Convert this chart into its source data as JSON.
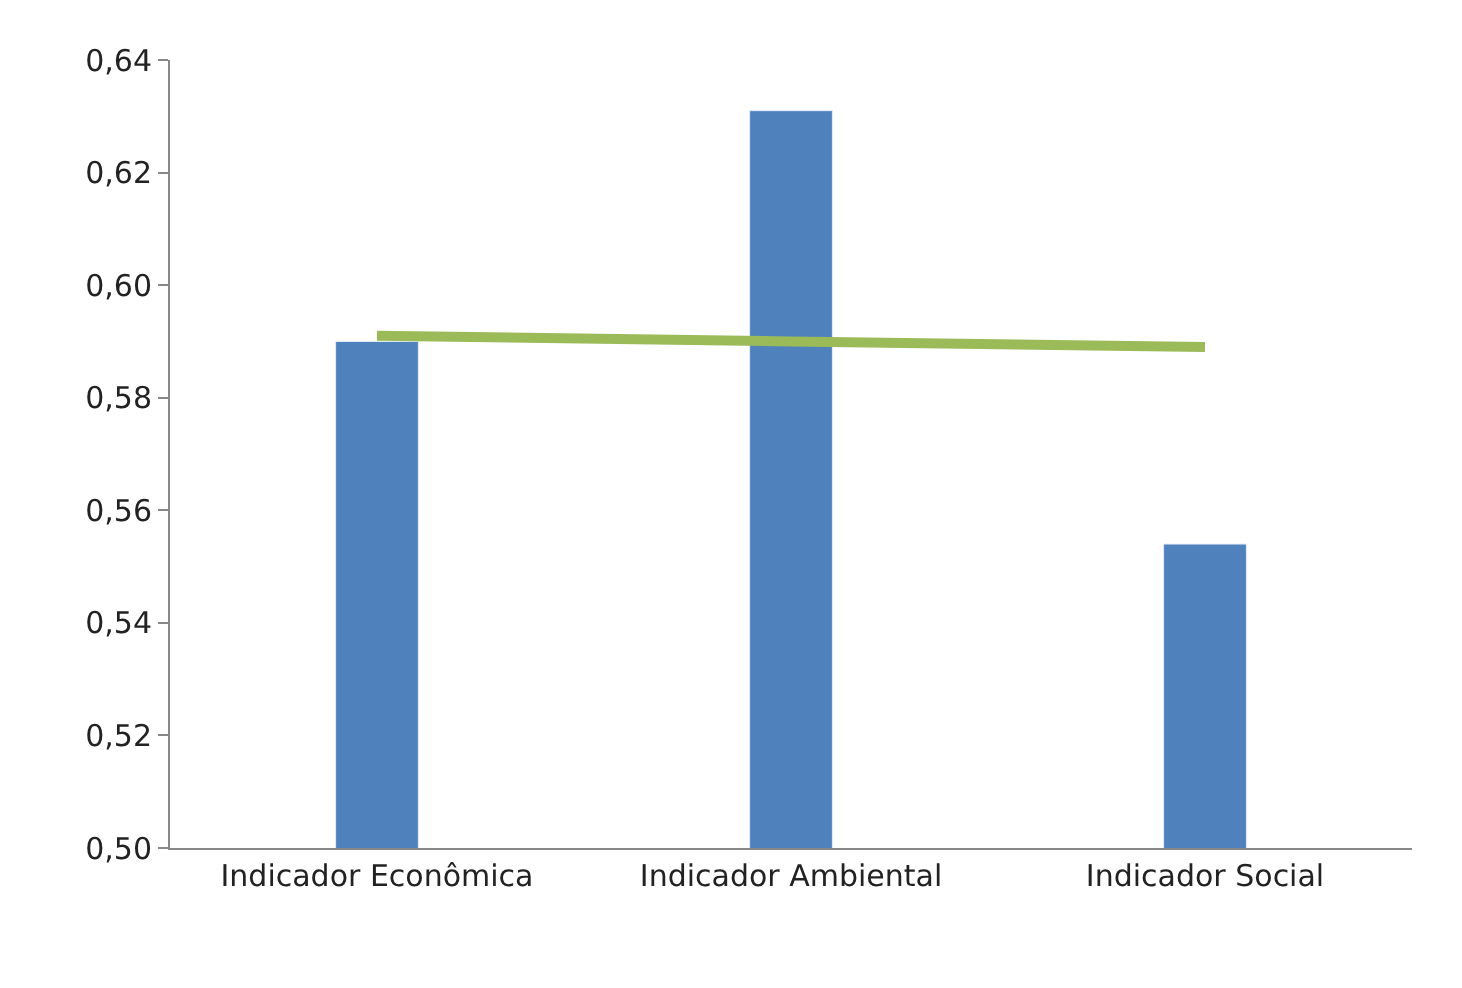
{
  "chart_data": {
    "type": "bar",
    "categories": [
      "Indicador Econômica",
      "Indicador Ambiental",
      "Indicador Social"
    ],
    "series": [
      {
        "color": "#4f81bd",
        "values": [
          0.59,
          0.631,
          0.554
        ]
      },
      {
        "type": "line",
        "color": "#9bbb59",
        "values": [
          0.591,
          0.59,
          0.589
        ]
      }
    ],
    "ylim": [
      0.5,
      0.64
    ],
    "yticks": [
      {
        "value": 0.5,
        "label": "0,50"
      },
      {
        "value": 0.52,
        "label": "0,52"
      },
      {
        "value": 0.54,
        "label": "0,54"
      },
      {
        "value": 0.56,
        "label": "0,56"
      },
      {
        "value": 0.58,
        "label": "0,58"
      },
      {
        "value": 0.6,
        "label": "0,60"
      },
      {
        "value": 0.62,
        "label": "0,62"
      },
      {
        "value": 0.64,
        "label": "0,64"
      }
    ],
    "relative": false
  }
}
